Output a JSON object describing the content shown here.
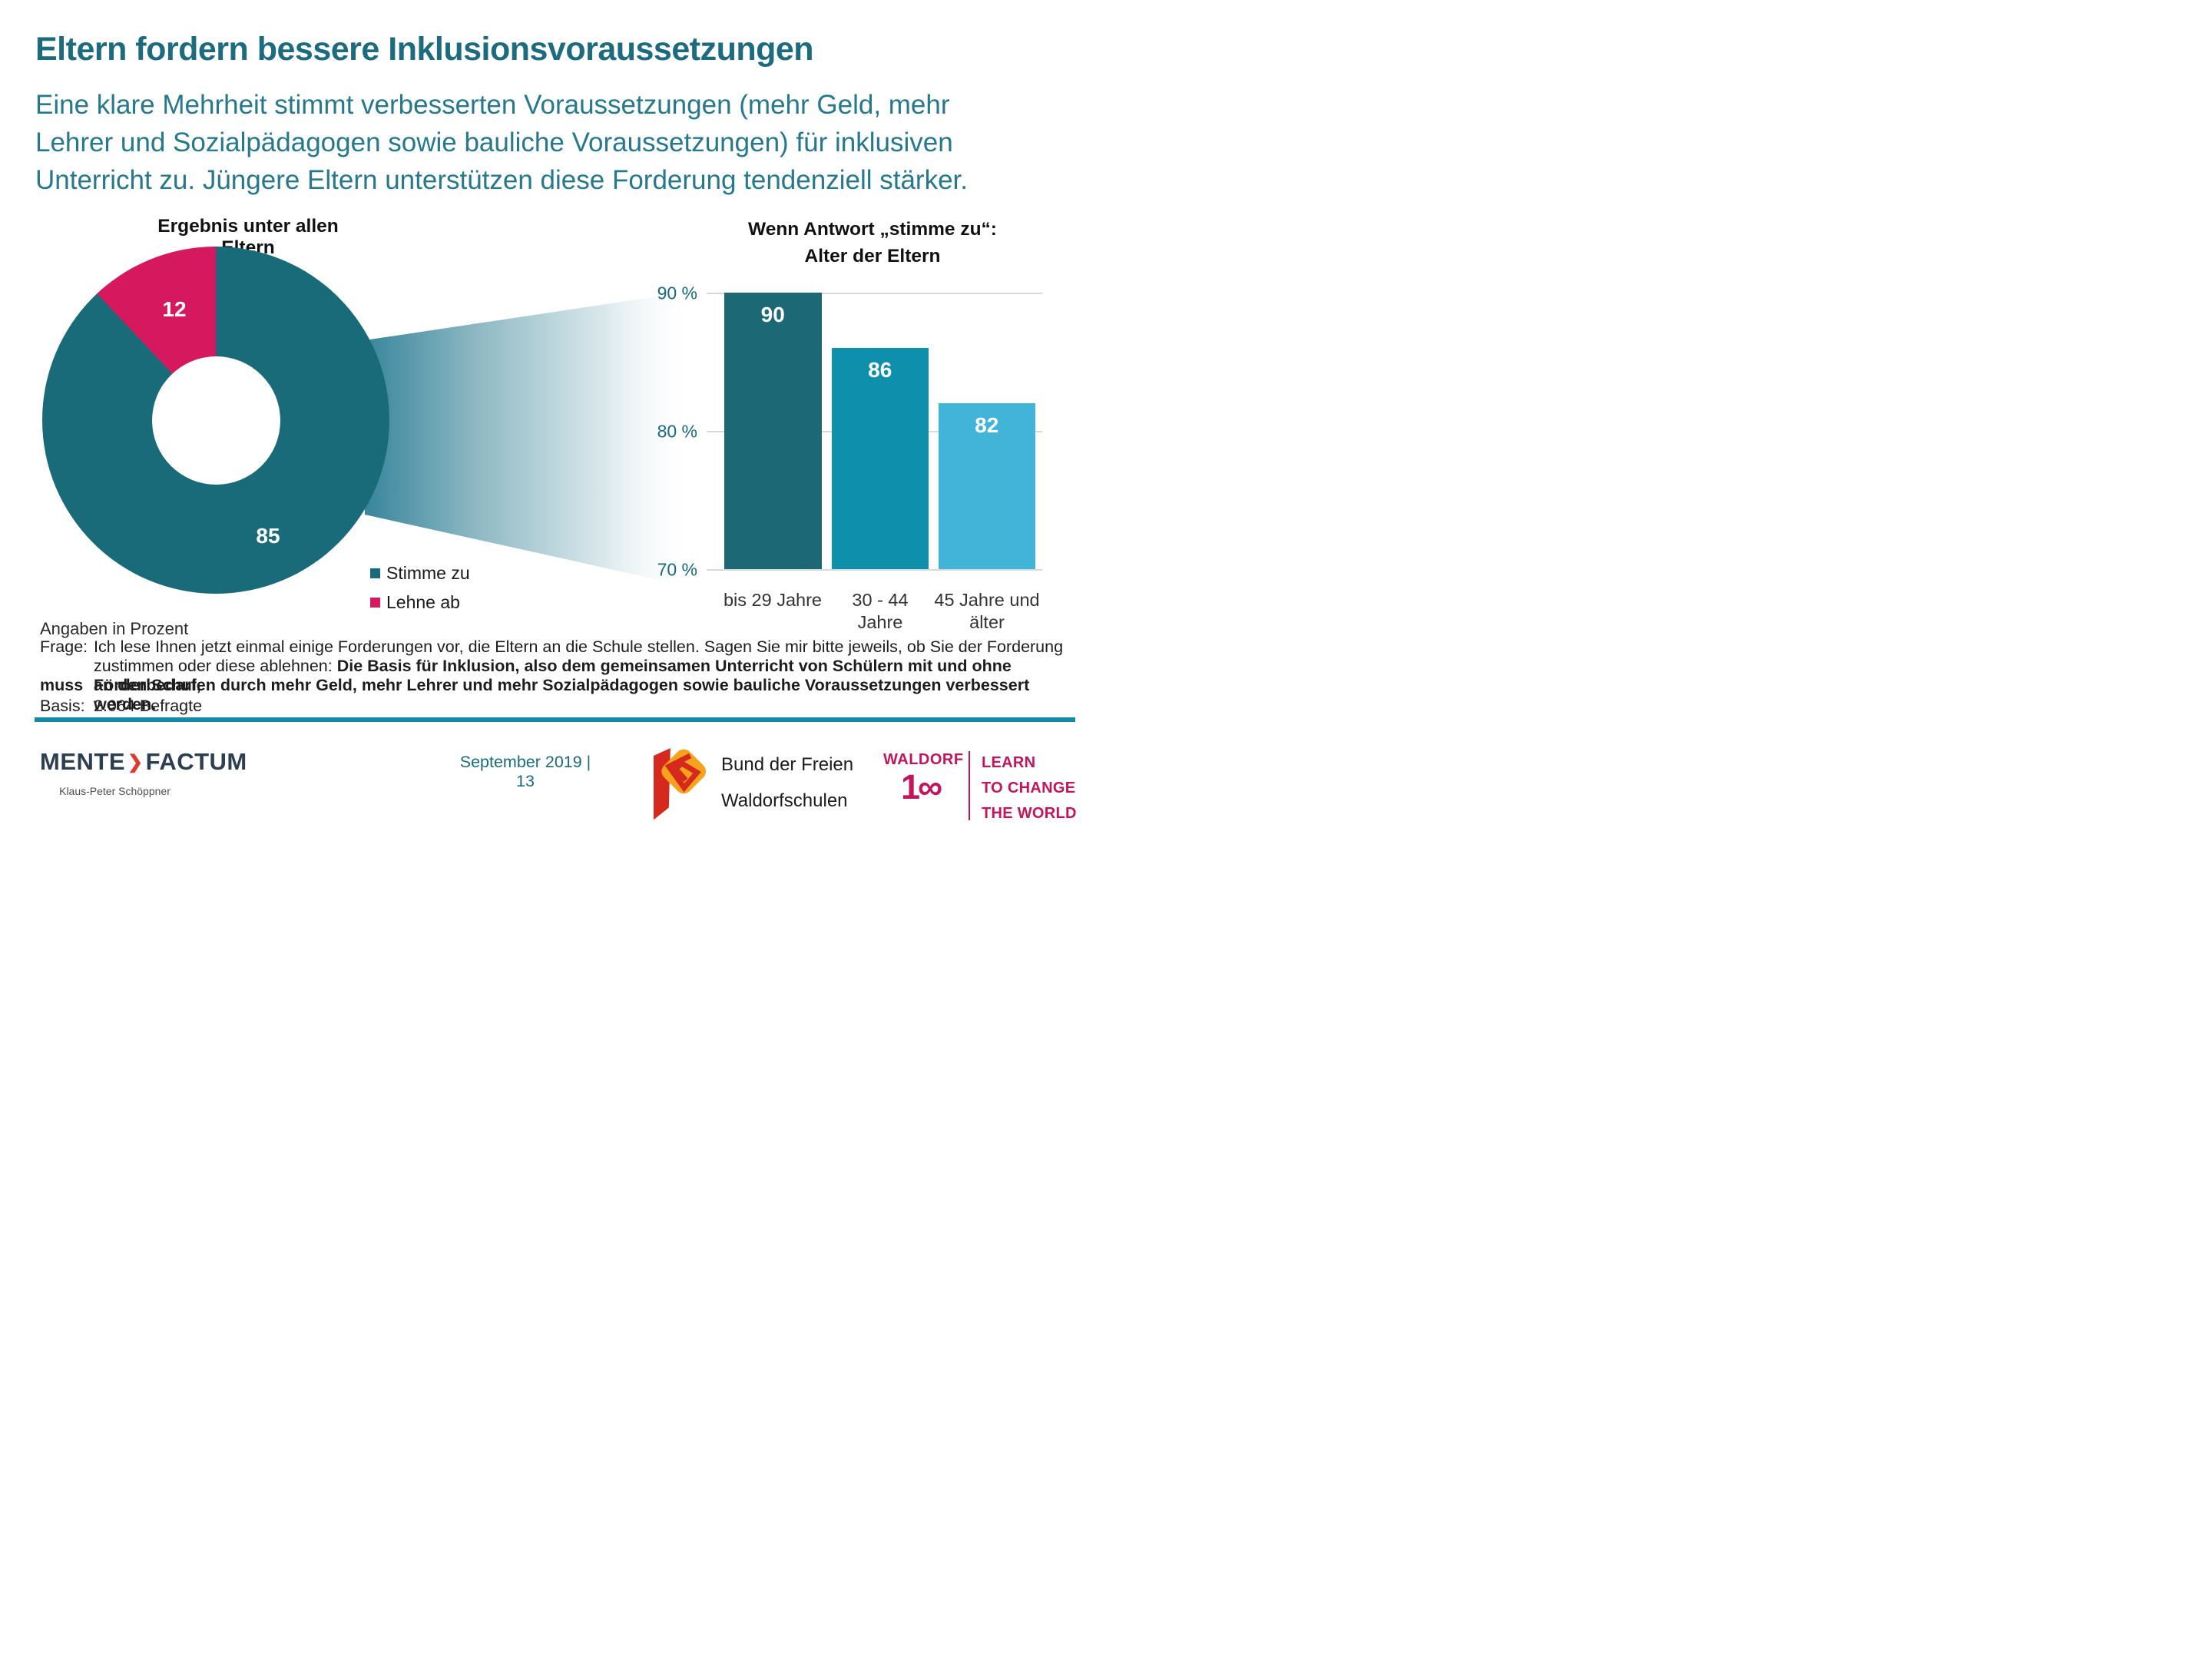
{
  "header": {
    "title": "Eltern fordern bessere Inklusionsvoraussetzungen",
    "subtitle_lines": [
      "Eine klare Mehrheit stimmt verbesserten Voraussetzungen (mehr Geld, mehr",
      "Lehrer und Sozialpädagogen sowie bauliche Voraussetzungen) für inklusiven",
      "Unterricht zu. Jüngere Eltern unterstützen diese Forderung tendenziell stärker."
    ]
  },
  "chart_data": [
    {
      "type": "pie",
      "donut": true,
      "title": "Ergebnis unter allen Eltern",
      "labels": [
        "Stimme zu",
        "Lehne ab"
      ],
      "values": [
        85,
        12
      ],
      "colors": [
        "#1A6B7A",
        "#D6195F"
      ],
      "units": "percent",
      "legend_position": "right-bottom"
    },
    {
      "type": "bar",
      "title_line1": "Wenn Antwort „stimme zu“:",
      "title_line2": "Alter der Eltern",
      "categories": [
        "bis 29 Jahre",
        "30 - 44\nJahre",
        "45 Jahre und\nälter"
      ],
      "values": [
        90,
        86,
        82
      ],
      "colors": [
        "#1D6875",
        "#0E90AD",
        "#41B4D8"
      ],
      "ylim": [
        70,
        90
      ],
      "yticks": [
        {
          "label": "90 %",
          "value": 90
        },
        {
          "label": "80 %",
          "value": 80
        },
        {
          "label": "70 %",
          "value": 70
        }
      ],
      "grid": true
    }
  ],
  "footnote": {
    "angaben": "Angaben in Prozent",
    "frage_label": "Frage:",
    "frage_line1": "Ich lese Ihnen jetzt einmal einige Forderungen vor, die Eltern an die Schule stellen. Sagen Sie mir bitte jeweils, ob Sie der Forderung",
    "frage_line2_regular": "zustimmen oder diese ablehnen: ",
    "frage_line2_bold": "Die Basis für Inklusion, also dem gemeinsamen Unterricht von Schülern mit und ohne Förderbedarf,",
    "frage_line3_label": "muss",
    "frage_line3_bold": "an den Schulen durch mehr Geld, mehr Lehrer und mehr Sozialpädagogen sowie bauliche Voraussetzungen verbessert werden.",
    "basis_label": "Basis:",
    "basis_text": "2.064 Befragte"
  },
  "footer": {
    "mente_part1": "MENTE",
    "mente_chevron": "❯",
    "mente_part2": "FACTUM",
    "mente_sub": "Klaus-Peter Schöppner",
    "date_page": "September 2019 | 13",
    "bund_line1": "Bund der Freien",
    "bund_line2": "Waldorfschulen",
    "waldorf_word": "WALDORF",
    "waldorf_one": "1",
    "waldorf_infinity": "∞",
    "learn_lines": [
      "LEARN",
      "TO CHANGE",
      "THE WORLD"
    ]
  },
  "colors": {
    "title_teal": "#1C6B7E",
    "subtitle_teal": "#26788C",
    "donut_teal": "#1A6B7A",
    "pink": "#D6195F",
    "axis_teal": "#18697E",
    "gridline": "#D9D9D9",
    "rule_teal": "#1789A8",
    "mente_navy": "#2C3E50",
    "mente_red": "#E03A2F",
    "waldorf_crimson": "#C3155C",
    "bund_orange": "#F6A21C",
    "bund_red": "#D5291E"
  }
}
